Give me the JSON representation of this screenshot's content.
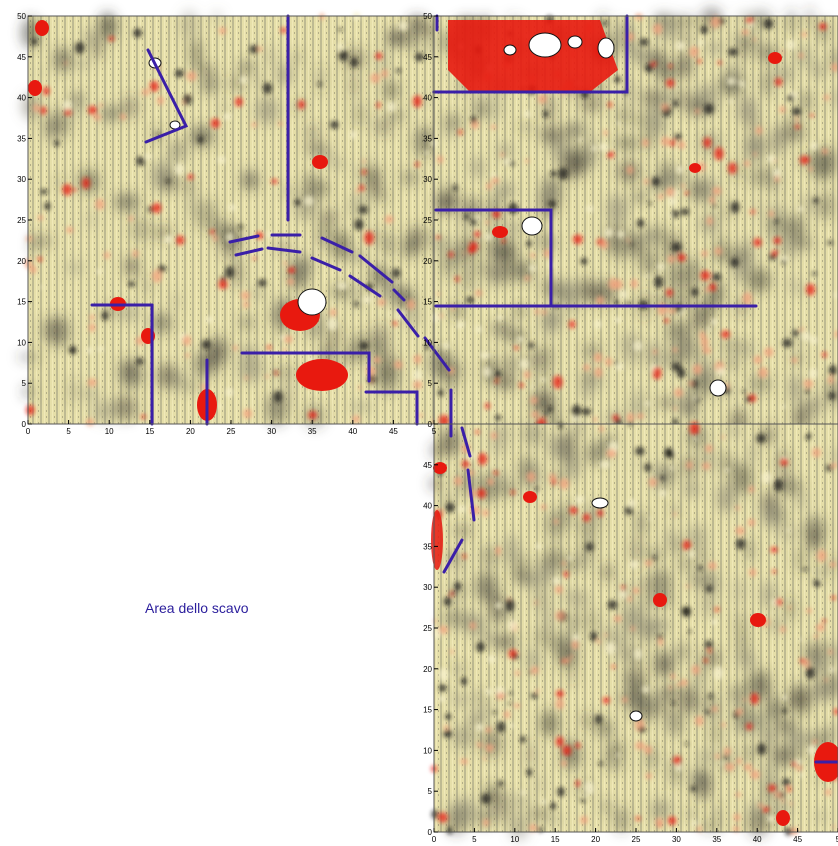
{
  "caption": "Area dello scavo",
  "colors": {
    "background_field": "#e3dca5",
    "high_anomaly": "#e8190f",
    "mid_anomaly": "#f2a27c",
    "low_anomaly": "#3c3a33",
    "dipole": "#ffffff",
    "interpretation_line": "#3a1fa8"
  },
  "panels": [
    {
      "id": "top-left",
      "x_ticks": [
        "0",
        "5",
        "10",
        "15",
        "20",
        "25",
        "30",
        "35",
        "40",
        "45",
        "5"
      ],
      "y_ticks": [
        "0",
        "5",
        "10",
        "15",
        "20",
        "25",
        "30",
        "35",
        "40",
        "45",
        "50"
      ]
    },
    {
      "id": "top-right",
      "x_ticks": [],
      "y_ticks": [
        "0",
        "5",
        "10",
        "15",
        "20",
        "25",
        "30",
        "35",
        "40",
        "45",
        "50"
      ]
    },
    {
      "id": "bottom-right",
      "x_ticks": [
        "0",
        "5",
        "10",
        "15",
        "20",
        "25",
        "30",
        "35",
        "40",
        "45",
        "5"
      ],
      "y_ticks": [
        "0",
        "5",
        "10",
        "15",
        "20",
        "25",
        "30",
        "35",
        "40",
        "45"
      ]
    }
  ]
}
